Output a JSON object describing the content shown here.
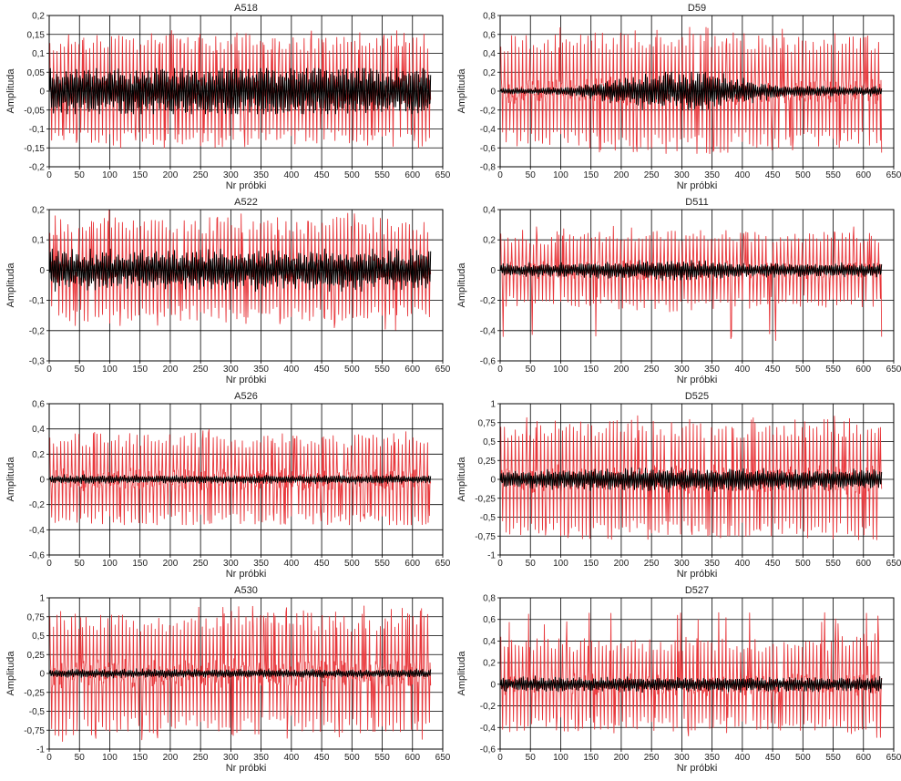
{
  "figure": {
    "x_label": "Nr próbki",
    "y_label": "Amplituda",
    "colors": {
      "background": "#ffffff",
      "grid": "#000000",
      "raw": "#e8373b",
      "filtered": "#000000"
    }
  },
  "chart_data": [
    {
      "type": "line",
      "title": "A518",
      "xlabel": "Nr próbki",
      "ylabel": "Amplituda",
      "xlim": [
        0,
        650
      ],
      "xticks": [
        0,
        50,
        100,
        150,
        200,
        250,
        300,
        350,
        400,
        450,
        500,
        550,
        600,
        650
      ],
      "ylim": [
        -0.2,
        0.2
      ],
      "yticks": [
        -0.2,
        -0.15,
        -0.1,
        -0.05,
        0,
        0.05,
        0.1,
        0.15,
        0.2
      ],
      "yticklabels": [
        "-0,2",
        "-0,15",
        "-0,1",
        "-0,05",
        "0",
        "0,05",
        "0,1",
        "0,15",
        "0,2"
      ],
      "grid": true,
      "samples": 630,
      "series": [
        {
          "color": "#e8373b",
          "amplitude_range": [
            -0.15,
            0.16
          ],
          "envelope": [
            0.13,
            0.13,
            0.14,
            0.14,
            0.14,
            0.14,
            0.14,
            0.13,
            0.13,
            0.13,
            0.13,
            0.14,
            0.14
          ]
        },
        {
          "color": "#000000",
          "amplitude_range": [
            -0.06,
            0.06
          ],
          "envelope": [
            0.06,
            0.06,
            0.06,
            0.06,
            0.06,
            0.06,
            0.06,
            0.06,
            0.06,
            0.06,
            0.06,
            0.06,
            0.06
          ]
        }
      ]
    },
    {
      "type": "line",
      "title": "D59",
      "xlabel": "Nr próbki",
      "ylabel": "Amplituda",
      "xlim": [
        0,
        650
      ],
      "xticks": [
        0,
        50,
        100,
        150,
        200,
        250,
        300,
        350,
        400,
        450,
        500,
        550,
        600,
        650
      ],
      "ylim": [
        -0.8,
        0.8
      ],
      "yticks": [
        -0.8,
        -0.6,
        -0.4,
        -0.2,
        0,
        0.2,
        0.4,
        0.6,
        0.8
      ],
      "yticklabels": [
        "-0,8",
        "-0,6",
        "-0,4",
        "-0,2",
        "0",
        "0,2",
        "0,4",
        "0,6",
        "0,8"
      ],
      "grid": true,
      "samples": 630,
      "series": [
        {
          "color": "#e8373b",
          "amplitude_range": [
            -0.66,
            0.68
          ],
          "envelope": [
            0.55,
            0.55,
            0.55,
            0.56,
            0.58,
            0.6,
            0.62,
            0.6,
            0.56,
            0.55,
            0.55,
            0.56,
            0.56
          ]
        },
        {
          "color": "#000000",
          "amplitude_range": [
            -0.2,
            0.2
          ],
          "envelope": [
            0.03,
            0.03,
            0.04,
            0.08,
            0.14,
            0.18,
            0.19,
            0.16,
            0.1,
            0.06,
            0.05,
            0.04,
            0.05
          ]
        }
      ]
    },
    {
      "type": "line",
      "title": "A522",
      "xlabel": "Nr próbki",
      "ylabel": "Amplituda",
      "xlim": [
        0,
        650
      ],
      "xticks": [
        0,
        50,
        100,
        150,
        200,
        250,
        300,
        350,
        400,
        450,
        500,
        550,
        600,
        650
      ],
      "ylim": [
        -0.3,
        0.2
      ],
      "yticks": [
        -0.3,
        -0.2,
        -0.1,
        0,
        0.1,
        0.2
      ],
      "yticklabels": [
        "-0,3",
        "-0,2",
        "-0,1",
        "0",
        "0,1",
        "0,2"
      ],
      "grid": true,
      "samples": 630,
      "series": [
        {
          "color": "#e8373b",
          "amplitude_range": [
            -0.2,
            0.2
          ],
          "envelope": [
            0.15,
            0.16,
            0.16,
            0.15,
            0.15,
            0.16,
            0.16,
            0.15,
            0.15,
            0.16,
            0.16,
            0.15,
            0.15
          ]
        },
        {
          "color": "#000000",
          "amplitude_range": [
            -0.07,
            0.07
          ],
          "envelope": [
            0.06,
            0.06,
            0.06,
            0.06,
            0.06,
            0.06,
            0.06,
            0.06,
            0.06,
            0.06,
            0.06,
            0.06,
            0.06
          ]
        }
      ]
    },
    {
      "type": "line",
      "title": "D511",
      "xlabel": "Nr próbki",
      "ylabel": "Amplituda",
      "xlim": [
        0,
        650
      ],
      "xticks": [
        0,
        50,
        100,
        150,
        200,
        250,
        300,
        350,
        400,
        450,
        500,
        550,
        600,
        650
      ],
      "ylim": [
        -0.6,
        0.4
      ],
      "yticks": [
        -0.6,
        -0.4,
        -0.2,
        0,
        0.2,
        0.4
      ],
      "yticklabels": [
        "-0,6",
        "-0,4",
        "-0,2",
        "0",
        "0,2",
        "0,4"
      ],
      "grid": true,
      "samples": 630,
      "series": [
        {
          "color": "#e8373b",
          "amplitude_range": [
            -0.52,
            0.3
          ],
          "envelope": [
            0.22,
            0.22,
            0.22,
            0.23,
            0.24,
            0.25,
            0.25,
            0.24,
            0.23,
            0.22,
            0.22,
            0.23,
            0.23
          ]
        },
        {
          "color": "#000000",
          "amplitude_range": [
            -0.36,
            0.1
          ],
          "envelope": [
            0.04,
            0.04,
            0.04,
            0.05,
            0.05,
            0.06,
            0.06,
            0.05,
            0.04,
            0.04,
            0.04,
            0.04,
            0.04
          ]
        }
      ]
    },
    {
      "type": "line",
      "title": "A526",
      "xlabel": "Nr próbki",
      "ylabel": "Amplituda",
      "xlim": [
        0,
        650
      ],
      "xticks": [
        0,
        50,
        100,
        150,
        200,
        250,
        300,
        350,
        400,
        450,
        500,
        550,
        600,
        650
      ],
      "ylim": [
        -0.6,
        0.6
      ],
      "yticks": [
        -0.6,
        -0.4,
        -0.2,
        0,
        0.2,
        0.4,
        0.6
      ],
      "yticklabels": [
        "-0,6",
        "-0,4",
        "-0,2",
        "0",
        "0,2",
        "0,4",
        "0,6"
      ],
      "grid": true,
      "samples": 630,
      "series": [
        {
          "color": "#e8373b",
          "amplitude_range": [
            -0.36,
            0.4
          ],
          "envelope": [
            0.33,
            0.34,
            0.33,
            0.34,
            0.34,
            0.33,
            0.33,
            0.34,
            0.33,
            0.33,
            0.33,
            0.34,
            0.38
          ]
        },
        {
          "color": "#000000",
          "amplitude_range": [
            -0.06,
            0.06
          ],
          "envelope": [
            0.03,
            0.03,
            0.03,
            0.03,
            0.03,
            0.03,
            0.03,
            0.03,
            0.03,
            0.03,
            0.03,
            0.03,
            0.03
          ]
        }
      ]
    },
    {
      "type": "line",
      "title": "D525",
      "xlabel": "Nr próbki",
      "ylabel": "Amplituda",
      "xlim": [
        0,
        650
      ],
      "xticks": [
        0,
        50,
        100,
        150,
        200,
        250,
        300,
        350,
        400,
        450,
        500,
        550,
        600,
        650
      ],
      "ylim": [
        -1,
        1
      ],
      "yticks": [
        -1,
        -0.75,
        -0.5,
        -0.25,
        0,
        0.25,
        0.5,
        0.75,
        1
      ],
      "yticklabels": [
        "-1",
        "-0,75",
        "-0,5",
        "-0,25",
        "0",
        "0,25",
        "0,5",
        "0,75",
        "1"
      ],
      "grid": true,
      "samples": 630,
      "series": [
        {
          "color": "#e8373b",
          "amplitude_range": [
            -0.8,
            0.85
          ],
          "envelope": [
            0.7,
            0.7,
            0.72,
            0.72,
            0.72,
            0.72,
            0.72,
            0.72,
            0.72,
            0.72,
            0.72,
            0.74,
            0.76
          ]
        },
        {
          "color": "#000000",
          "amplitude_range": [
            -0.2,
            0.2
          ],
          "envelope": [
            0.1,
            0.1,
            0.12,
            0.13,
            0.14,
            0.14,
            0.14,
            0.14,
            0.13,
            0.12,
            0.12,
            0.12,
            0.12
          ]
        }
      ]
    },
    {
      "type": "line",
      "title": "A530",
      "xlabel": "Nr próbki",
      "ylabel": "Amplituda",
      "xlim": [
        0,
        650
      ],
      "xticks": [
        0,
        50,
        100,
        150,
        200,
        250,
        300,
        350,
        400,
        450,
        500,
        550,
        600,
        650
      ],
      "ylim": [
        -1,
        1
      ],
      "yticks": [
        -1,
        -0.75,
        -0.5,
        -0.25,
        0,
        0.25,
        0.5,
        0.75,
        1
      ],
      "yticklabels": [
        "-1",
        "-0,75",
        "-0,5",
        "-0,25",
        "0",
        "0,25",
        "0,5",
        "0,75",
        "1"
      ],
      "grid": true,
      "samples": 630,
      "series": [
        {
          "color": "#e8373b",
          "amplitude_range": [
            -0.92,
            0.9
          ],
          "envelope": [
            0.75,
            0.75,
            0.72,
            0.72,
            0.72,
            0.74,
            0.75,
            0.74,
            0.73,
            0.72,
            0.72,
            0.8,
            0.85
          ]
        },
        {
          "color": "#000000",
          "amplitude_range": [
            -0.1,
            0.1
          ],
          "envelope": [
            0.05,
            0.05,
            0.05,
            0.05,
            0.05,
            0.05,
            0.05,
            0.05,
            0.05,
            0.05,
            0.05,
            0.05,
            0.05
          ]
        }
      ]
    },
    {
      "type": "line",
      "title": "D527",
      "xlabel": "Nr próbki",
      "ylabel": "Amplituda",
      "xlim": [
        0,
        650
      ],
      "xticks": [
        0,
        50,
        100,
        150,
        200,
        250,
        300,
        350,
        400,
        450,
        500,
        550,
        600,
        650
      ],
      "ylim": [
        -0.6,
        0.8
      ],
      "yticks": [
        -0.6,
        -0.4,
        -0.2,
        0,
        0.2,
        0.4,
        0.6,
        0.8
      ],
      "yticklabels": [
        "-0,6",
        "-0,4",
        "-0,2",
        "0",
        "0,2",
        "0,4",
        "0,6",
        "0,8"
      ],
      "grid": true,
      "samples": 630,
      "series": [
        {
          "color": "#e8373b",
          "amplitude_range": [
            -0.5,
            0.68
          ],
          "envelope": [
            0.4,
            0.4,
            0.4,
            0.38,
            0.38,
            0.4,
            0.4,
            0.4,
            0.38,
            0.38,
            0.4,
            0.42,
            0.46
          ]
        },
        {
          "color": "#000000",
          "amplitude_range": [
            -0.2,
            0.2
          ],
          "envelope": [
            0.06,
            0.06,
            0.06,
            0.06,
            0.06,
            0.06,
            0.06,
            0.06,
            0.06,
            0.06,
            0.06,
            0.06,
            0.06
          ]
        }
      ]
    }
  ]
}
